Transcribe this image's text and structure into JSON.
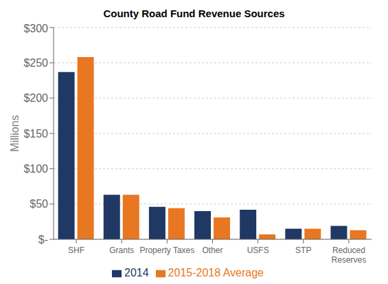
{
  "chart_data": {
    "type": "bar",
    "title": "County Road Fund Revenue Sources",
    "categories": [
      "SHF",
      "Grants",
      "Property Taxes",
      "Other",
      "USFS",
      "STP",
      "Reduced\nReserves"
    ],
    "series": [
      {
        "name": "2014",
        "color": "#1F3864",
        "values": [
          237,
          63,
          46,
          40,
          42,
          15,
          19
        ]
      },
      {
        "name": "2015-2018 Average",
        "color": "#E87722",
        "values": [
          258,
          63,
          44,
          31,
          7,
          15,
          13
        ]
      }
    ],
    "ylabel": "Millions",
    "ylim": [
      0,
      300
    ],
    "yticks": [
      {
        "value": 0,
        "label": "$-"
      },
      {
        "value": 50,
        "label": "$50"
      },
      {
        "value": 100,
        "label": "$100"
      },
      {
        "value": 150,
        "label": "$150"
      },
      {
        "value": 200,
        "label": "$200"
      },
      {
        "value": 250,
        "label": "$250"
      },
      {
        "value": 300,
        "label": "$300"
      }
    ],
    "grid": true,
    "legend": "bottom"
  }
}
